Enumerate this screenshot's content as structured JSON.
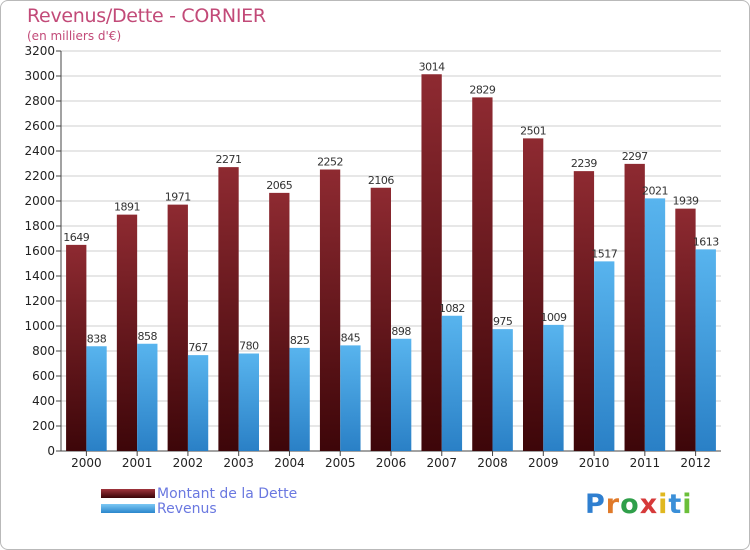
{
  "chart_data": {
    "type": "bar",
    "title": "Revenus/Dette - CORNIER",
    "subtitle": "(en milliers d'€)",
    "categories": [
      "2000",
      "2001",
      "2002",
      "2003",
      "2004",
      "2005",
      "2006",
      "2007",
      "2008",
      "2009",
      "2010",
      "2011",
      "2012"
    ],
    "series": [
      {
        "name": "Montant de la Dette",
        "values": [
          1649,
          1891,
          1971,
          2271,
          2065,
          2252,
          2106,
          3014,
          2829,
          2501,
          2239,
          2297,
          1939
        ],
        "color": "#7a1e24"
      },
      {
        "name": "Revenus",
        "values": [
          838,
          858,
          767,
          780,
          825,
          845,
          898,
          1082,
          975,
          1009,
          1517,
          2021,
          1613
        ],
        "color": "#4aa8e8"
      }
    ],
    "ylim": [
      0,
      3200
    ],
    "ytick_step": 200,
    "grid": true,
    "legend_position": "bottom-left"
  },
  "logo": {
    "letters": [
      "P",
      "r",
      "o",
      "x",
      "i",
      "t",
      "i"
    ],
    "colors": [
      "#2f7fd0",
      "#e07a2a",
      "#2f9f4a",
      "#d63a3a",
      "#e0b820",
      "#3a8fd8",
      "#6bbf3a"
    ]
  }
}
